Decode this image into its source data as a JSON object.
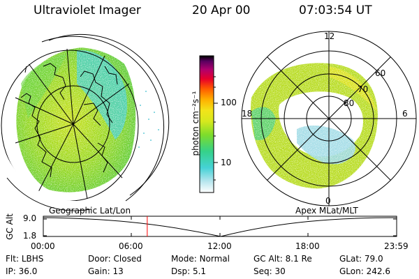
{
  "header": {
    "instrument": "Ultraviolet Imager",
    "date": "20 Apr 00",
    "time": "07:03:54 UT"
  },
  "panels": {
    "left_label": "Geographic Lat/Lon",
    "right_label": "Apex MLat/MLT"
  },
  "polar_labels": {
    "mlt": [
      "12",
      "18",
      "6",
      "0"
    ],
    "mlat": [
      "60",
      "70",
      "80"
    ]
  },
  "colorbar": {
    "label": "photon cm⁻²s⁻¹",
    "ticks": [
      "100",
      "10"
    ],
    "colors": [
      "#ffffff",
      "#b8e6ee",
      "#46d2d6",
      "#35d18a",
      "#7cdc2c",
      "#d6e81e",
      "#f2e41a",
      "#ffb000",
      "#ff5a00",
      "#e8002a",
      "#b0006e",
      "#5a0060",
      "#000000"
    ]
  },
  "timeline": {
    "axis_label": "GC Alt",
    "y_ticks": [
      "9.0",
      "1.8"
    ],
    "x_ticks": [
      "00:00",
      "06:00",
      "12:00",
      "18:00",
      "23:59"
    ],
    "current_marker_hour": 7.06
  },
  "info": {
    "flt_label": "Flt:",
    "flt_value": "LBHS",
    "door_label": "Door:",
    "door_value": "Closed",
    "mode_label": "Mode:",
    "mode_value": "Normal",
    "gcalt_label": "GC Alt:",
    "gcalt_value": "8.1 Re",
    "glat_label": "GLat:",
    "glat_value": "79.0",
    "ip_label": "IP:",
    "ip_value": "36.0",
    "gain_label": "Gain:",
    "gain_value": "13",
    "dsp_label": "Dsp:",
    "dsp_value": "5.1",
    "seq_label": "Seq:",
    "seq_value": "30",
    "glon_label": "GLon:",
    "glon_value": "242.6"
  },
  "colors": {
    "marker": "#ff0000",
    "ink": "#000000"
  }
}
